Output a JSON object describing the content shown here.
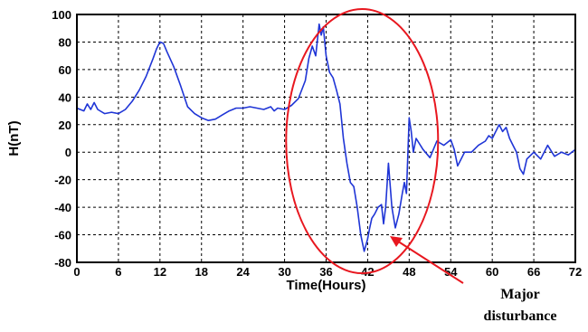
{
  "chart_data": {
    "type": "line",
    "title": "",
    "xlabel": "Time(Hours)",
    "ylabel": "H(nT)",
    "xlim": [
      0,
      72
    ],
    "ylim": [
      -80,
      100
    ],
    "xticks": [
      0,
      6,
      12,
      18,
      24,
      30,
      36,
      42,
      48,
      54,
      60,
      66,
      72
    ],
    "yticks": [
      -80,
      -60,
      -40,
      -20,
      0,
      20,
      40,
      60,
      80,
      100
    ],
    "grid": true,
    "series": [
      {
        "color": "#1f35d6",
        "x": [
          0,
          1,
          1.5,
          2,
          2.5,
          3,
          4,
          5,
          6,
          7,
          8,
          9,
          10,
          11,
          11.5,
          12,
          12.5,
          13,
          14,
          15,
          16,
          17,
          18,
          19,
          20,
          21,
          22,
          23,
          24,
          25,
          26,
          27,
          28,
          28.5,
          29,
          30,
          31,
          32,
          33,
          33.5,
          34,
          34.5,
          35,
          35.3,
          35.6,
          36,
          36.5,
          37,
          37.5,
          38,
          38.5,
          39,
          39.5,
          40,
          40.5,
          41,
          41.5,
          42,
          42.3,
          42.6,
          43,
          43.5,
          44,
          44.3,
          44.6,
          45,
          45.5,
          46,
          46.5,
          47,
          47.3,
          47.6,
          48,
          48.3,
          48.6,
          49,
          50,
          51,
          52,
          53,
          54,
          54.5,
          55,
          56,
          57,
          58,
          59,
          59.5,
          60,
          61,
          61.5,
          62,
          62.5,
          63,
          63.5,
          64,
          64.5,
          65,
          66,
          67,
          68,
          69,
          70,
          71,
          72
        ],
        "y": [
          32,
          30,
          35,
          31,
          36,
          31,
          28,
          29,
          28,
          31,
          37,
          45,
          55,
          68,
          75,
          80,
          79,
          73,
          62,
          48,
          33,
          28,
          25,
          23,
          24,
          27,
          30,
          32,
          32,
          33,
          32,
          31,
          33,
          30,
          32,
          31,
          34,
          39,
          52,
          68,
          77,
          70,
          93,
          85,
          91,
          70,
          58,
          54,
          45,
          35,
          10,
          -8,
          -22,
          -25,
          -40,
          -60,
          -72,
          -63,
          -55,
          -48,
          -45,
          -40,
          -38,
          -52,
          -40,
          -8,
          -40,
          -55,
          -45,
          -30,
          -22,
          -30,
          25,
          15,
          0,
          10,
          2,
          -4,
          8,
          5,
          9,
          2,
          -10,
          0,
          0,
          5,
          8,
          12,
          10,
          20,
          15,
          18,
          10,
          5,
          0,
          -12,
          -16,
          -5,
          0,
          -5,
          5,
          -3,
          0,
          -2,
          2
        ]
      }
    ],
    "annotations": [
      {
        "text_line1": "Major",
        "text_line2": "disturbance",
        "color": "#e8171f"
      }
    ]
  }
}
